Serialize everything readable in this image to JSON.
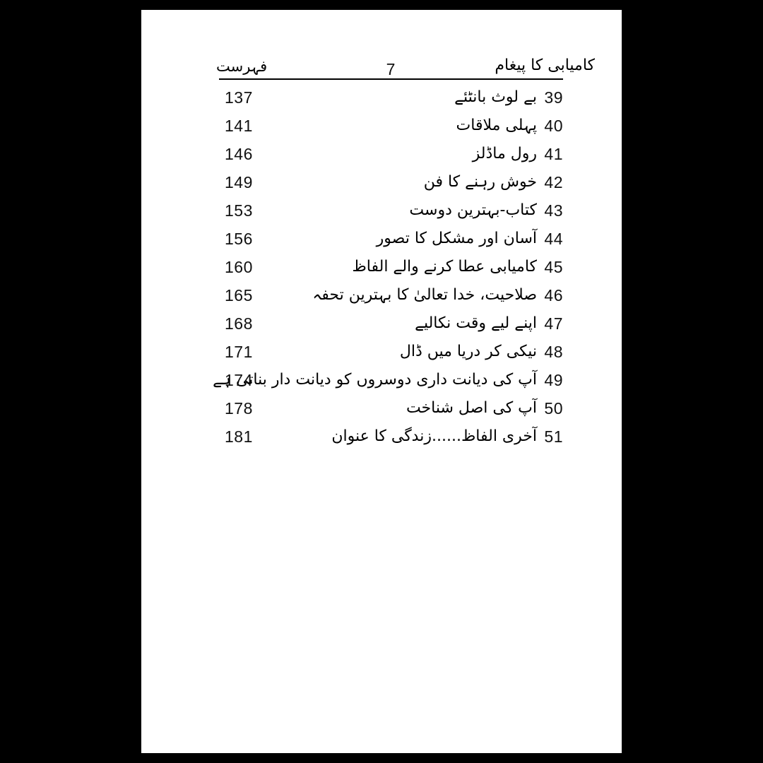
{
  "header": {
    "left_title": "فہرست",
    "page_number": "7",
    "right_title": "کامیابی کا پیغام"
  },
  "toc": {
    "entries": [
      {
        "chapter": "39",
        "title": "بے لوث بانٹئے",
        "page": "137"
      },
      {
        "chapter": "40",
        "title": "پہلی ملاقات",
        "page": "141"
      },
      {
        "chapter": "41",
        "title": "رول ماڈلز",
        "page": "146"
      },
      {
        "chapter": "42",
        "title": "خوش رہنے کا فن",
        "page": "149"
      },
      {
        "chapter": "43",
        "title": "کتاب-بہترین دوست",
        "page": "153"
      },
      {
        "chapter": "44",
        "title": "آسان اور مشکل کا تصور",
        "page": "156"
      },
      {
        "chapter": "45",
        "title": "کامیابی عطا کرنے والے الفاظ",
        "page": "160"
      },
      {
        "chapter": "46",
        "title": "صلاحیت، خدا تعالیٰ کا بہترین تحفہ",
        "page": "165"
      },
      {
        "chapter": "47",
        "title": "اپنے لیے وقت نکالیے",
        "page": "168"
      },
      {
        "chapter": "48",
        "title": "نیکی کر دریا میں ڈال",
        "page": "171"
      },
      {
        "chapter": "49",
        "title": "آپ کی دیانت داری دوسروں کو دیانت دار بناتی ہے",
        "page": "174"
      },
      {
        "chapter": "50",
        "title": "آپ کی اصل شناخت",
        "page": "178"
      },
      {
        "chapter": "51",
        "title": "آخری الفاظ......زندگی کا عنوان",
        "page": "181"
      }
    ]
  },
  "colors": {
    "background": "#000000",
    "paper": "#ffffff",
    "ink": "#000000"
  }
}
